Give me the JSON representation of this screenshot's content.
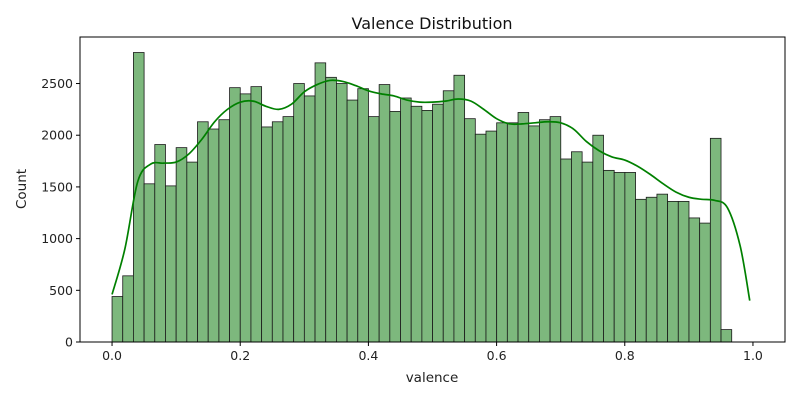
{
  "chart_data": {
    "type": "bar",
    "title": "Valence Distribution",
    "xlabel": "valence",
    "ylabel": "Count",
    "xlim": [
      -0.05,
      1.05
    ],
    "ylim": [
      0,
      2950
    ],
    "xticks": [
      0.0,
      0.2,
      0.4,
      0.6,
      0.8,
      1.0
    ],
    "xtick_labels": [
      "0.0",
      "0.2",
      "0.4",
      "0.6",
      "0.8",
      "1.0"
    ],
    "yticks": [
      0,
      500,
      1000,
      1500,
      2000,
      2500
    ],
    "ytick_labels": [
      "0",
      "500",
      "1000",
      "1500",
      "2000",
      "2500"
    ],
    "grid": false,
    "bins": {
      "start": 0.0,
      "width": 0.01667,
      "counts": [
        440,
        640,
        2800,
        1530,
        1910,
        1510,
        1880,
        1740,
        2130,
        2060,
        2150,
        2460,
        2400,
        2470,
        2080,
        2130,
        2180,
        2500,
        2380,
        2700,
        2560,
        2500,
        2340,
        2450,
        2180,
        2490,
        2230,
        2360,
        2280,
        2240,
        2300,
        2430,
        2580,
        2160,
        2010,
        2040,
        2120,
        2120,
        2220,
        2090,
        2150,
        2180,
        1770,
        1840,
        1740,
        2000,
        1660,
        1640,
        1640,
        1380,
        1400,
        1430,
        1360,
        1360,
        1200,
        1150,
        1970,
        120
      ]
    },
    "kde": {
      "x": [
        0.0,
        0.02,
        0.04,
        0.06,
        0.08,
        0.1,
        0.12,
        0.14,
        0.16,
        0.18,
        0.2,
        0.22,
        0.24,
        0.26,
        0.28,
        0.3,
        0.32,
        0.34,
        0.36,
        0.38,
        0.4,
        0.42,
        0.44,
        0.46,
        0.48,
        0.5,
        0.52,
        0.54,
        0.56,
        0.58,
        0.6,
        0.62,
        0.64,
        0.66,
        0.68,
        0.7,
        0.72,
        0.74,
        0.76,
        0.78,
        0.8,
        0.82,
        0.84,
        0.86,
        0.88,
        0.9,
        0.92,
        0.94,
        0.96,
        0.98,
        0.995
      ],
      "y": [
        460,
        900,
        1550,
        1720,
        1730,
        1740,
        1820,
        1960,
        2130,
        2250,
        2320,
        2330,
        2280,
        2250,
        2300,
        2420,
        2490,
        2530,
        2520,
        2480,
        2430,
        2400,
        2380,
        2340,
        2320,
        2320,
        2330,
        2350,
        2330,
        2250,
        2160,
        2110,
        2110,
        2120,
        2130,
        2120,
        2060,
        1940,
        1850,
        1790,
        1760,
        1700,
        1620,
        1530,
        1450,
        1400,
        1380,
        1370,
        1300,
        930,
        400
      ]
    },
    "colors": {
      "bar_fill": "#7db87d",
      "bar_edge": "#1a1a1a",
      "kde_line": "#008000"
    }
  }
}
